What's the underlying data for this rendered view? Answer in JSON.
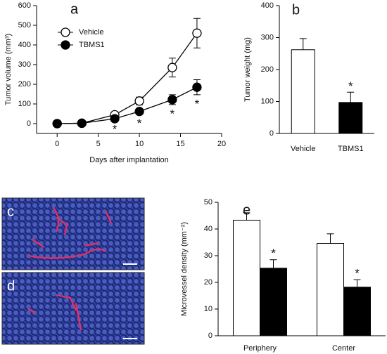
{
  "chart_data": [
    {
      "type": "line",
      "panel_label": "a",
      "x_label": "Days after implantation",
      "y_label": "Tumor volume (mm³)",
      "x": [
        0,
        3,
        7,
        10,
        14,
        17
      ],
      "series": [
        {
          "name": "Vehicle",
          "color": "#ffffff",
          "values": [
            0,
            2,
            45,
            115,
            285,
            460
          ],
          "errors": [
            0,
            0,
            10,
            20,
            48,
            75
          ]
        },
        {
          "name": "TBMS1",
          "color": "#000000",
          "values": [
            0,
            2,
            25,
            62,
            122,
            185
          ],
          "errors": [
            0,
            0,
            8,
            14,
            25,
            38
          ],
          "significance": [
            null,
            null,
            "*",
            "*",
            "*",
            "*"
          ]
        }
      ],
      "xlim": [
        -2.5,
        20
      ],
      "xticks": [
        0,
        5,
        10,
        15,
        20
      ],
      "ylim": [
        -50,
        600
      ],
      "yticks": [
        0,
        100,
        200,
        300,
        400,
        500,
        600
      ],
      "legend": "upper left"
    },
    {
      "type": "bar",
      "panel_label": "b",
      "y_label": "Tumor weight (mg)",
      "categories": [
        "Vehicle",
        "TBMS1"
      ],
      "series": [
        {
          "colors": [
            "#ffffff",
            "#000000"
          ],
          "values": [
            262,
            97
          ],
          "errors": [
            35,
            32
          ],
          "significance": [
            null,
            "*"
          ]
        }
      ],
      "ylim": [
        0,
        400
      ],
      "yticks": [
        0,
        100,
        200,
        300,
        400
      ]
    },
    {
      "type": "bar",
      "panel_label": "e",
      "y_label": "Microvessel density (mm⁻²)",
      "categories": [
        "Periphery",
        "Center"
      ],
      "series": [
        {
          "color": "#ffffff",
          "values": [
            43.3,
            34.6
          ],
          "errors": [
            2.8,
            3.6
          ]
        },
        {
          "color": "#000000",
          "values": [
            25.3,
            18.2
          ],
          "errors": [
            3.2,
            2.8
          ],
          "significance": [
            "*",
            "*"
          ]
        }
      ],
      "ylim": [
        0,
        50
      ],
      "yticks": [
        0,
        10,
        20,
        30,
        40,
        50
      ]
    }
  ],
  "images": [
    {
      "label": "c"
    },
    {
      "label": "d"
    }
  ]
}
